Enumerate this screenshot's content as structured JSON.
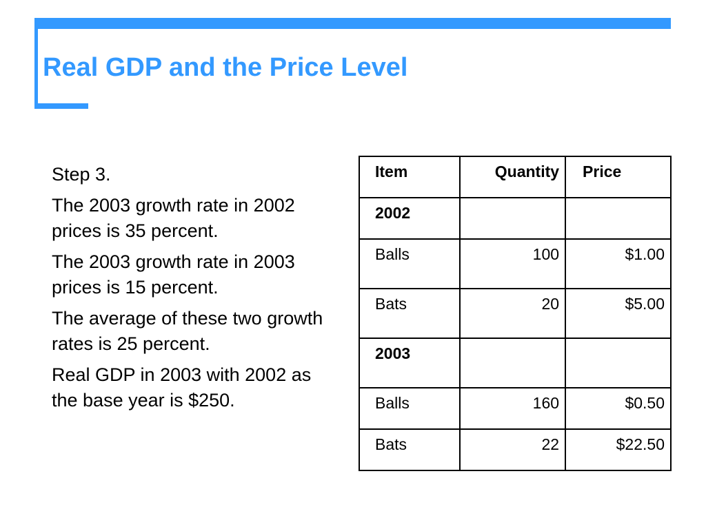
{
  "slide": {
    "title": "Real GDP and the Price Level",
    "accent_color": "#3399ff"
  },
  "body": {
    "paragraphs": [
      "Step 3.",
      "The 2003 growth rate in 2002 prices is 35 percent.",
      "The 2003 growth rate in 2003 prices is 15 percent.",
      "The average of these two growth rates is 25 percent.",
      "Real GDP in 2003 with 2002 as the base year is $250."
    ]
  },
  "table": {
    "headers": [
      "Item",
      "Quantity",
      "Price"
    ],
    "sections": [
      {
        "year": "2002",
        "rows": [
          {
            "item": "Balls",
            "quantity": "100",
            "price": "$1.00"
          },
          {
            "item": "Bats",
            "quantity": "20",
            "price": "$5.00"
          }
        ]
      },
      {
        "year": "2003",
        "rows": [
          {
            "item": "Balls",
            "quantity": "160",
            "price": "$0.50"
          },
          {
            "item": "Bats",
            "quantity": "22",
            "price": "$22.50"
          }
        ]
      }
    ]
  }
}
